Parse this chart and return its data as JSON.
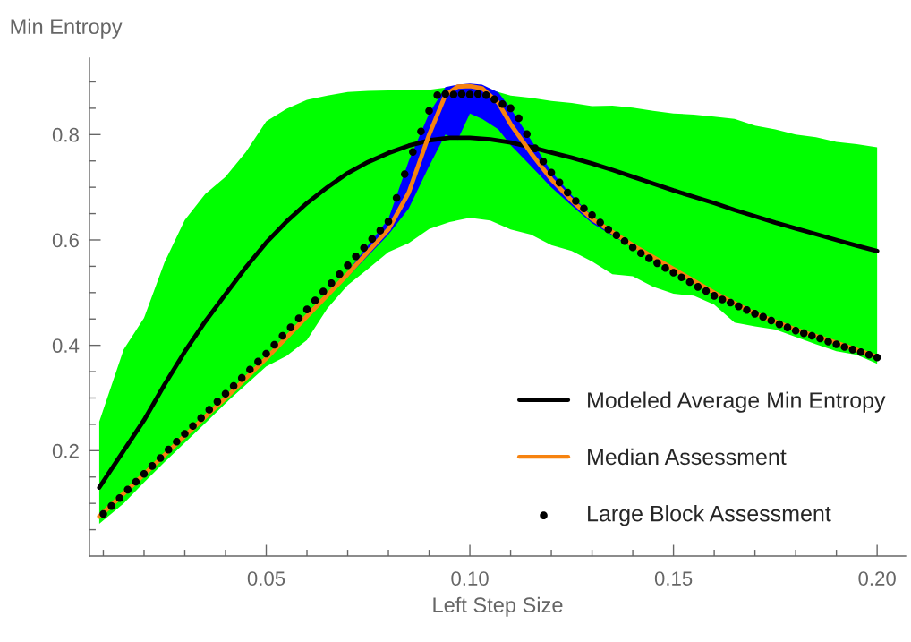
{
  "chart_data": {
    "type": "line",
    "xlabel": "Left Step Size",
    "ylabel": "Min Entropy",
    "xlim": [
      0.0066,
      0.207
    ],
    "ylim": [
      0,
      0.945
    ],
    "xticks": [
      {
        "value": 0.01,
        "label": null
      },
      {
        "value": 0.02,
        "label": null
      },
      {
        "value": 0.03,
        "label": null
      },
      {
        "value": 0.04,
        "label": null
      },
      {
        "value": 0.05,
        "label": "0.05"
      },
      {
        "value": 0.06,
        "label": null
      },
      {
        "value": 0.07,
        "label": null
      },
      {
        "value": 0.08,
        "label": null
      },
      {
        "value": 0.09,
        "label": null
      },
      {
        "value": 0.1,
        "label": "0.10"
      },
      {
        "value": 0.11,
        "label": null
      },
      {
        "value": 0.12,
        "label": null
      },
      {
        "value": 0.13,
        "label": null
      },
      {
        "value": 0.14,
        "label": null
      },
      {
        "value": 0.15,
        "label": "0.15"
      },
      {
        "value": 0.16,
        "label": null
      },
      {
        "value": 0.17,
        "label": null
      },
      {
        "value": 0.18,
        "label": null
      },
      {
        "value": 0.19,
        "label": null
      },
      {
        "value": 0.2,
        "label": "0.20"
      }
    ],
    "yticks": [
      {
        "value": 0.05,
        "label": null
      },
      {
        "value": 0.1,
        "label": null
      },
      {
        "value": 0.15,
        "label": null
      },
      0.2,
      {
        "value": 0.25,
        "label": null
      },
      {
        "value": 0.3,
        "label": null
      },
      {
        "value": 0.35,
        "label": null
      },
      0.4,
      {
        "value": 0.45,
        "label": null
      },
      {
        "value": 0.5,
        "label": null
      },
      {
        "value": 0.55,
        "label": null
      },
      0.6,
      {
        "value": 0.65,
        "label": null
      },
      {
        "value": 0.7,
        "label": null
      },
      {
        "value": 0.75,
        "label": null
      },
      0.8,
      {
        "value": 0.85,
        "label": null
      },
      {
        "value": 0.9,
        "label": null
      }
    ],
    "grid": false,
    "legend": "bottom right",
    "series": [
      {
        "color": "#00ff00",
        "x": [
          0.009,
          0.015,
          0.02,
          0.025,
          0.03,
          0.035,
          0.04,
          0.045,
          0.05,
          0.055,
          0.06,
          0.065,
          0.07,
          0.075,
          0.08,
          0.085,
          0.09,
          0.095,
          0.1,
          0.105,
          0.11,
          0.115,
          0.12,
          0.125,
          0.13,
          0.135,
          0.14,
          0.145,
          0.15,
          0.155,
          0.16,
          0.165,
          0.17,
          0.175,
          0.18,
          0.185,
          0.19,
          0.195,
          0.2
        ],
        "values": [
          null,
          null,
          null,
          null,
          null,
          null,
          null,
          null,
          null,
          null,
          null,
          null,
          null,
          null,
          null,
          null,
          null,
          null,
          null,
          null,
          null,
          null,
          null,
          null,
          null,
          null,
          null,
          null,
          null,
          null,
          null,
          null,
          null,
          null,
          null,
          null,
          null,
          null,
          null
        ],
        "upper": [
          0.255,
          0.392,
          0.452,
          0.557,
          0.638,
          0.687,
          0.72,
          0.767,
          0.825,
          0.849,
          0.866,
          0.874,
          0.881,
          0.883,
          0.884,
          0.885,
          0.885,
          0.89,
          0.89,
          0.885,
          0.874,
          0.87,
          0.864,
          0.86,
          0.854,
          0.855,
          0.851,
          0.845,
          0.84,
          0.838,
          0.834,
          0.83,
          0.817,
          0.81,
          0.8,
          0.795,
          0.786,
          0.782,
          0.776
        ],
        "lower": [
          0.061,
          0.1,
          0.14,
          0.178,
          0.215,
          0.252,
          0.29,
          0.325,
          0.36,
          0.38,
          0.41,
          0.47,
          0.514,
          0.545,
          0.577,
          0.594,
          0.621,
          0.634,
          0.642,
          0.637,
          0.62,
          0.61,
          0.59,
          0.579,
          0.559,
          0.535,
          0.531,
          0.511,
          0.498,
          0.494,
          0.477,
          0.443,
          0.436,
          0.43,
          0.416,
          0.402,
          0.389,
          0.382,
          0.365
        ]
      },
      {
        "color": "#0000ff",
        "x": [
          0.009,
          0.02,
          0.03,
          0.04,
          0.05,
          0.06,
          0.07,
          0.08,
          0.085,
          0.09,
          0.094,
          0.097,
          0.1,
          0.103,
          0.107,
          0.11,
          0.115,
          0.12,
          0.125,
          0.13,
          0.14,
          0.15,
          0.16,
          0.17,
          0.18,
          0.19,
          0.2
        ],
        "values": [
          null,
          null,
          null,
          null,
          null,
          null,
          null,
          null,
          null,
          null,
          null,
          null,
          null,
          null,
          null,
          null,
          null,
          null,
          null,
          null,
          null,
          null,
          null,
          null,
          null,
          null,
          null
        ],
        "upper": [
          0.075,
          0.155,
          0.228,
          0.3,
          0.375,
          0.455,
          0.54,
          0.64,
          0.75,
          0.84,
          0.89,
          0.895,
          0.897,
          0.895,
          0.88,
          0.85,
          0.79,
          0.73,
          0.685,
          0.645,
          0.592,
          0.545,
          0.5,
          0.46,
          0.43,
          0.405,
          0.378
        ],
        "lower": [
          0.075,
          0.155,
          0.228,
          0.3,
          0.375,
          0.455,
          0.53,
          0.61,
          0.66,
          0.74,
          0.8,
          0.79,
          0.84,
          0.83,
          0.81,
          0.78,
          0.74,
          0.7,
          0.665,
          0.632,
          0.585,
          0.545,
          0.5,
          0.46,
          0.43,
          0.405,
          0.378
        ]
      },
      {
        "name": "Modeled Average Min Entropy",
        "color": "#000000",
        "x": [
          0.009,
          0.015,
          0.02,
          0.025,
          0.03,
          0.035,
          0.04,
          0.045,
          0.05,
          0.055,
          0.06,
          0.065,
          0.07,
          0.075,
          0.08,
          0.085,
          0.09,
          0.095,
          0.1,
          0.105,
          0.11,
          0.115,
          0.12,
          0.125,
          0.13,
          0.135,
          0.14,
          0.145,
          0.15,
          0.155,
          0.16,
          0.165,
          0.17,
          0.175,
          0.18,
          0.185,
          0.19,
          0.195,
          0.2
        ],
        "values": [
          0.13,
          0.2,
          0.258,
          0.325,
          0.388,
          0.445,
          0.497,
          0.548,
          0.595,
          0.635,
          0.67,
          0.7,
          0.727,
          0.748,
          0.765,
          0.779,
          0.789,
          0.794,
          0.794,
          0.791,
          0.785,
          0.776,
          0.766,
          0.756,
          0.745,
          0.733,
          0.72,
          0.707,
          0.694,
          0.682,
          0.67,
          0.657,
          0.645,
          0.633,
          0.622,
          0.611,
          0.6,
          0.589,
          0.579
        ]
      },
      {
        "name": "Median Assessment",
        "color": "#f7830f",
        "x": [
          0.009,
          0.02,
          0.03,
          0.04,
          0.05,
          0.06,
          0.07,
          0.08,
          0.085,
          0.09,
          0.094,
          0.097,
          0.1,
          0.103,
          0.107,
          0.11,
          0.115,
          0.12,
          0.125,
          0.13,
          0.14,
          0.15,
          0.16,
          0.17,
          0.18,
          0.19,
          0.2
        ],
        "values": [
          0.075,
          0.155,
          0.228,
          0.3,
          0.375,
          0.455,
          0.535,
          0.62,
          0.69,
          0.8,
          0.875,
          0.891,
          0.892,
          0.888,
          0.86,
          0.82,
          0.765,
          0.715,
          0.675,
          0.64,
          0.59,
          0.545,
          0.5,
          0.46,
          0.43,
          0.405,
          0.378
        ]
      },
      {
        "name": "Large Block Assessment",
        "type": "scatter",
        "color": "#000000",
        "marker": "circle",
        "x": [
          0.01,
          0.012,
          0.014,
          0.016,
          0.018,
          0.02,
          0.022,
          0.024,
          0.026,
          0.028,
          0.03,
          0.032,
          0.034,
          0.036,
          0.038,
          0.04,
          0.042,
          0.044,
          0.046,
          0.048,
          0.05,
          0.052,
          0.054,
          0.056,
          0.058,
          0.06,
          0.062,
          0.064,
          0.066,
          0.068,
          0.07,
          0.072,
          0.074,
          0.076,
          0.078,
          0.08,
          0.082,
          0.084,
          0.086,
          0.088,
          0.09,
          0.092,
          0.094,
          0.096,
          0.098,
          0.1,
          0.102,
          0.104,
          0.106,
          0.108,
          0.11,
          0.112,
          0.114,
          0.116,
          0.118,
          0.12,
          0.122,
          0.124,
          0.126,
          0.128,
          0.13,
          0.132,
          0.134,
          0.136,
          0.138,
          0.14,
          0.142,
          0.144,
          0.146,
          0.148,
          0.15,
          0.152,
          0.154,
          0.156,
          0.158,
          0.16,
          0.162,
          0.164,
          0.166,
          0.168,
          0.17,
          0.172,
          0.174,
          0.176,
          0.178,
          0.18,
          0.182,
          0.184,
          0.186,
          0.188,
          0.19,
          0.192,
          0.194,
          0.196,
          0.198,
          0.2
        ],
        "values": [
          0.08,
          0.095,
          0.11,
          0.126,
          0.141,
          0.156,
          0.171,
          0.186,
          0.202,
          0.217,
          0.232,
          0.247,
          0.262,
          0.278,
          0.293,
          0.308,
          0.323,
          0.338,
          0.354,
          0.369,
          0.384,
          0.401,
          0.418,
          0.434,
          0.451,
          0.468,
          0.485,
          0.502,
          0.518,
          0.535,
          0.552,
          0.569,
          0.585,
          0.602,
          0.618,
          0.635,
          0.68,
          0.725,
          0.767,
          0.806,
          0.845,
          0.875,
          0.877,
          0.876,
          0.877,
          0.876,
          0.877,
          0.875,
          0.867,
          0.858,
          0.85,
          0.831,
          0.801,
          0.774,
          0.749,
          0.728,
          0.709,
          0.69,
          0.674,
          0.66,
          0.647,
          0.633,
          0.62,
          0.609,
          0.598,
          0.586,
          0.575,
          0.565,
          0.556,
          0.547,
          0.538,
          0.529,
          0.52,
          0.511,
          0.503,
          0.494,
          0.487,
          0.481,
          0.474,
          0.467,
          0.46,
          0.454,
          0.447,
          0.44,
          0.434,
          0.428,
          0.423,
          0.418,
          0.413,
          0.407,
          0.402,
          0.397,
          0.392,
          0.387,
          0.382,
          0.377
        ]
      }
    ]
  }
}
